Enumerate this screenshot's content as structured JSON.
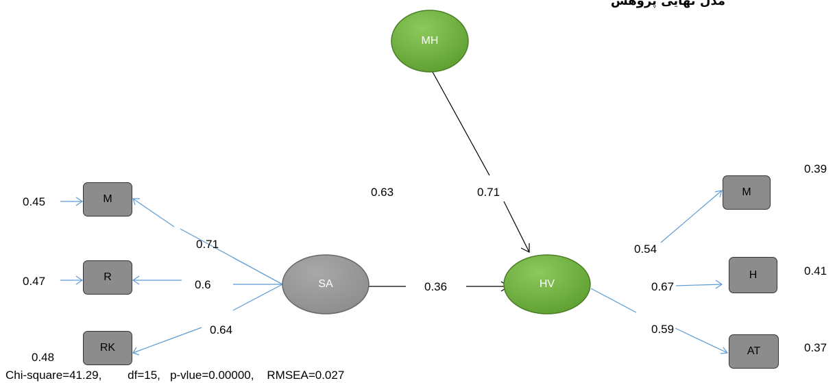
{
  "title": "مدل نهایی پژوهش",
  "nodes": {
    "mh": "MH",
    "sa": "SA",
    "hv": "HV",
    "left_m": "M",
    "left_r": "R",
    "left_rk": "RK",
    "right_m": "M",
    "right_h": "H",
    "right_at": "AT"
  },
  "errors": {
    "left_m": "0.45",
    "left_r": "0.47",
    "left_rk": "0.48",
    "right_m": "0.39",
    "right_h": "0.41",
    "right_at": "0.37"
  },
  "loadings": {
    "sa_m": "0.71",
    "sa_r": "0.6",
    "sa_rk": "0.64",
    "hv_m": "0.54",
    "hv_h": "0.67",
    "hv_at": "0.59"
  },
  "paths": {
    "sa_hv": "0.36",
    "mh_hv": "0.71",
    "r_squared": "0.63"
  },
  "fit": {
    "chi_square": "Chi-square=41.29,",
    "df": "df=15,",
    "p_value": "p-vlue=0.00000,",
    "rmsea": "RMSEA=0.027"
  },
  "colors": {
    "latent_green": "#6aab3a",
    "latent_gray": "#999999",
    "indicator_box": "#8c8c8c",
    "measurement_arrow": "#5b9bd5",
    "structural_arrow": "#000000"
  }
}
